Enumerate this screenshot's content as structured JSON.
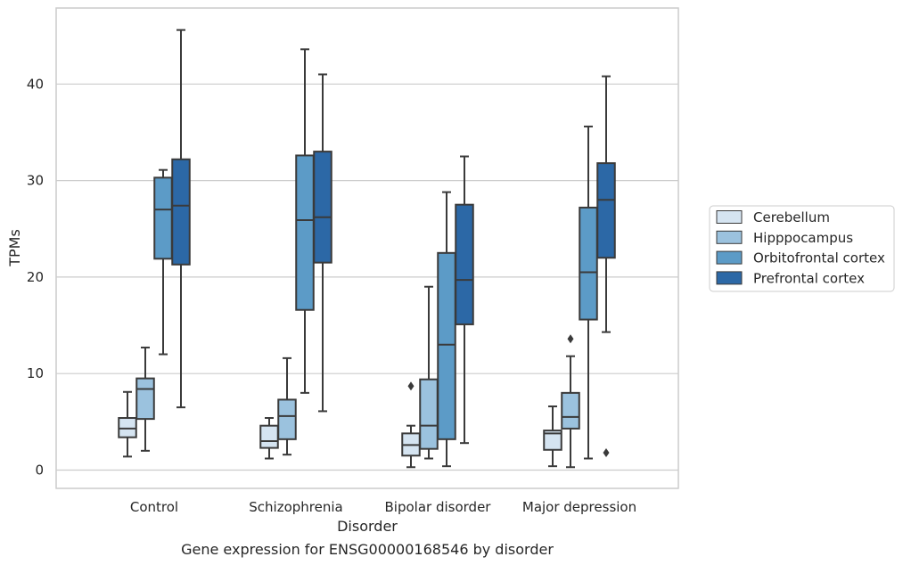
{
  "chart_data": {
    "type": "box",
    "title": "",
    "caption": "Gene expression for ENSG00000168546 by disorder",
    "xlabel": "Disorder",
    "ylabel": "TPMs",
    "ylim": [
      -1.8,
      48
    ],
    "yticks": [
      0,
      10,
      20,
      30,
      40
    ],
    "grid": "horizontal",
    "legend_position": "right",
    "categories": [
      "Control",
      "Schizophrenia",
      "Bipolar disorder",
      "Major depression"
    ],
    "series": [
      {
        "name": "Cerebellum",
        "color": "#d5e4f1",
        "boxes": [
          {
            "whislo": 1.4,
            "q1": 3.4,
            "med": 4.3,
            "q3": 5.4,
            "whishi": 8.1,
            "fliers": []
          },
          {
            "whislo": 1.2,
            "q1": 2.3,
            "med": 3.0,
            "q3": 4.6,
            "whishi": 5.4,
            "fliers": []
          },
          {
            "whislo": 0.3,
            "q1": 1.5,
            "med": 2.6,
            "q3": 3.8,
            "whishi": 4.6,
            "fliers": [
              8.7
            ]
          },
          {
            "whislo": 0.4,
            "q1": 2.1,
            "med": 3.8,
            "q3": 4.1,
            "whishi": 6.6,
            "fliers": []
          }
        ]
      },
      {
        "name": "Hipppocampus",
        "color": "#9bc2de",
        "boxes": [
          {
            "whislo": 2.0,
            "q1": 5.3,
            "med": 8.4,
            "q3": 9.5,
            "whishi": 12.7,
            "fliers": []
          },
          {
            "whislo": 1.6,
            "q1": 3.2,
            "med": 5.6,
            "q3": 7.3,
            "whishi": 11.6,
            "fliers": []
          },
          {
            "whislo": 1.2,
            "q1": 2.2,
            "med": 4.6,
            "q3": 9.4,
            "whishi": 19.0,
            "fliers": []
          },
          {
            "whislo": 0.3,
            "q1": 4.3,
            "med": 5.5,
            "q3": 8.0,
            "whishi": 11.8,
            "fliers": [
              13.6
            ]
          }
        ]
      },
      {
        "name": "Orbitofrontal cortex",
        "color": "#5c9bc7",
        "boxes": [
          {
            "whislo": 12.0,
            "q1": 21.9,
            "med": 27.0,
            "q3": 30.3,
            "whishi": 31.1,
            "fliers": []
          },
          {
            "whislo": 8.0,
            "q1": 16.6,
            "med": 25.9,
            "q3": 32.6,
            "whishi": 43.6,
            "fliers": []
          },
          {
            "whislo": 0.4,
            "q1": 3.2,
            "med": 13.0,
            "q3": 22.5,
            "whishi": 28.8,
            "fliers": []
          },
          {
            "whislo": 1.2,
            "q1": 15.6,
            "med": 20.5,
            "q3": 27.2,
            "whishi": 35.6,
            "fliers": []
          }
        ]
      },
      {
        "name": "Prefrontal cortex",
        "color": "#2c68a6",
        "boxes": [
          {
            "whislo": 6.5,
            "q1": 21.3,
            "med": 27.4,
            "q3": 32.2,
            "whishi": 45.6,
            "fliers": []
          },
          {
            "whislo": 6.1,
            "q1": 21.5,
            "med": 26.2,
            "q3": 33.0,
            "whishi": 41.0,
            "fliers": []
          },
          {
            "whislo": 2.8,
            "q1": 15.1,
            "med": 19.7,
            "q3": 27.5,
            "whishi": 32.5,
            "fliers": []
          },
          {
            "whislo": 14.3,
            "q1": 22.0,
            "med": 28.0,
            "q3": 31.8,
            "whishi": 40.8,
            "fliers": [
              1.8
            ]
          }
        ]
      }
    ]
  },
  "colors": {
    "grid": "#cccccc",
    "frame": "#cccccc",
    "box_edge": "#3a3a3a",
    "text": "#262626"
  }
}
